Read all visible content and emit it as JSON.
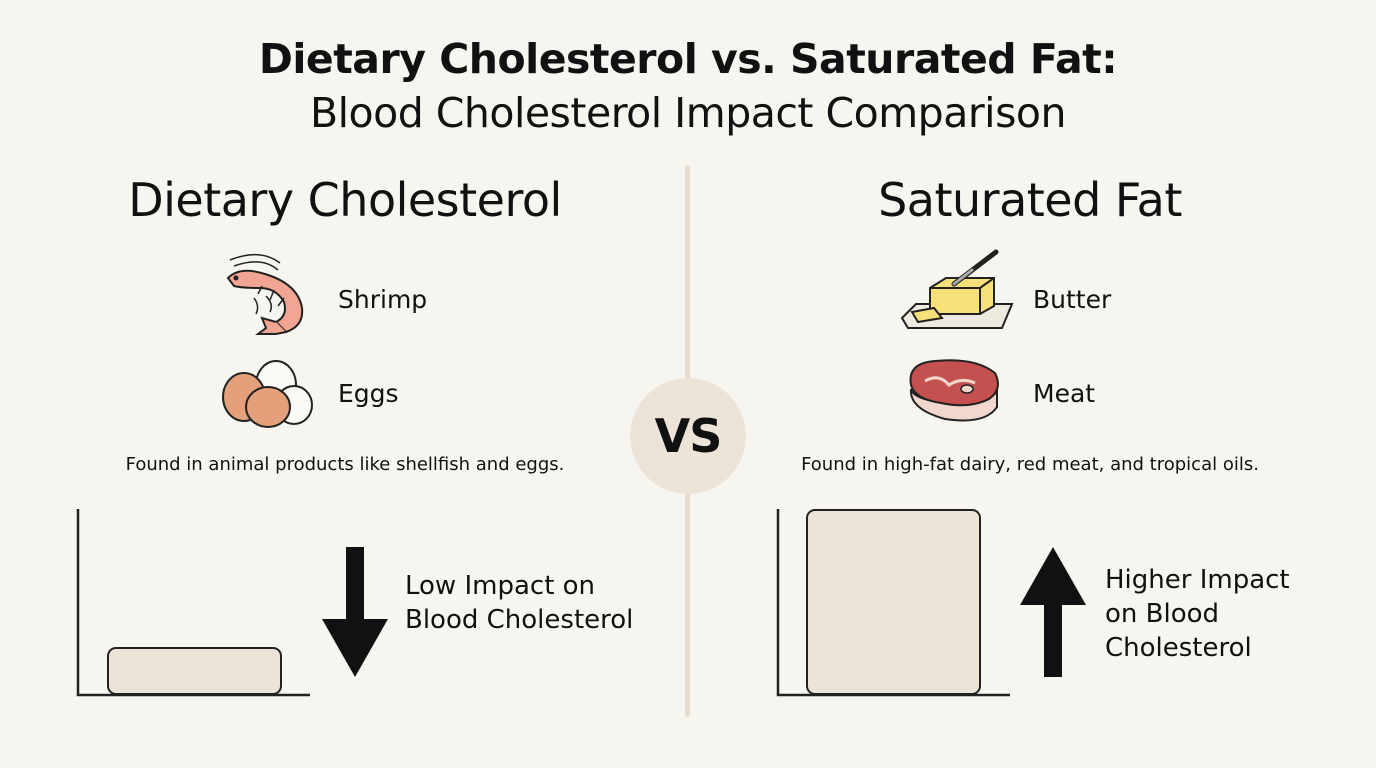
{
  "title": {
    "line1": "Dietary Cholesterol vs. Saturated Fat:",
    "line2": "Blood Cholesterol Impact Comparison"
  },
  "vs_label": "VS",
  "left": {
    "heading": "Dietary Cholesterol",
    "foods": [
      {
        "label": "Shrimp",
        "icon": "shrimp-icon"
      },
      {
        "label": "Eggs",
        "icon": "eggs-icon"
      }
    ],
    "description": "Found in animal products like shellfish and eggs.",
    "impact_lines": [
      "Low Impact on",
      "Blood Cholesterol"
    ],
    "impact_direction": "down",
    "bar_level": 0.2
  },
  "right": {
    "heading": "Saturated Fat",
    "foods": [
      {
        "label": "Butter",
        "icon": "butter-icon"
      },
      {
        "label": "Meat",
        "icon": "meat-icon"
      }
    ],
    "description": "Found in high-fat dairy, red meat, and tropical oils.",
    "impact_lines": [
      "Higher Impact",
      "on Blood",
      "Cholesterol"
    ],
    "impact_direction": "up",
    "bar_level": 0.8
  },
  "colors": {
    "background": "#f7f5f0",
    "bar_fill": "#ebe4d7",
    "divider": "#e6ddd0",
    "shrimp": "#f2a593",
    "egg_brown": "#e3a07a",
    "butter": "#f7df7a",
    "meat": "#c4504f"
  }
}
